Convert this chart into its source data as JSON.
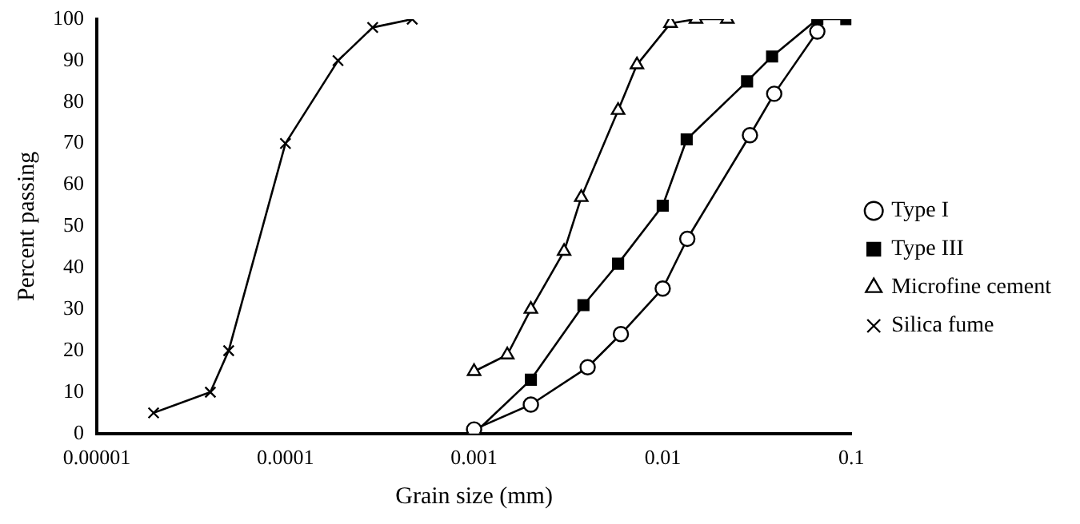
{
  "chart_data": {
    "type": "line",
    "xlabel": "Grain size (mm)",
    "ylabel": "Percent passing",
    "log": "x",
    "xlim": [
      1e-05,
      0.1
    ],
    "xticks": [
      {
        "value": 1e-05,
        "label": "0.00001"
      },
      0.0001,
      0.001,
      0.01,
      0.1
    ],
    "ylim": [
      0,
      100
    ],
    "yticks": [
      0,
      10,
      20,
      30,
      40,
      50,
      60,
      70,
      80,
      90,
      100
    ],
    "grid": false,
    "legend": "right",
    "line_style": "solid",
    "series": [
      {
        "name": "Type I",
        "color": "#000000",
        "marker": "circle",
        "x": [
          0.001,
          0.002,
          0.004,
          0.006,
          0.01,
          0.0135,
          0.029,
          0.039,
          0.066
        ],
        "values": [
          1,
          7,
          16,
          24,
          35,
          47,
          72,
          82,
          97
        ]
      },
      {
        "name": "Type III",
        "color": "#000000",
        "marker": "square",
        "x": [
          0.001,
          0.002,
          0.0038,
          0.0058,
          0.01,
          0.0134,
          0.028,
          0.038,
          0.066,
          0.094
        ],
        "values": [
          0,
          13,
          31,
          41,
          55,
          71,
          85,
          91,
          100,
          100
        ]
      },
      {
        "name": "Microfine cement",
        "color": "#000000",
        "marker": "triangle",
        "x": [
          0.001,
          0.0015,
          0.002,
          0.003,
          0.0037,
          0.0058,
          0.0073,
          0.011,
          0.015,
          0.022
        ],
        "values": [
          15,
          19,
          30,
          44,
          57,
          78,
          89,
          99,
          100,
          100
        ]
      },
      {
        "name": "Silica fume",
        "color": "#000000",
        "marker": "cross",
        "x": [
          2e-05,
          4e-05,
          5e-05,
          0.0001,
          0.00019,
          0.00029,
          0.00047
        ],
        "values": [
          5,
          10,
          20,
          70,
          90,
          98,
          100
        ]
      }
    ]
  }
}
